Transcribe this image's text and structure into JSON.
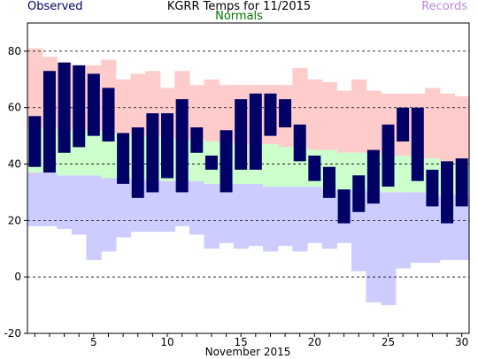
{
  "chart_data": {
    "type": "bar",
    "title": "KGRR Temps for 11/2015",
    "xlabel": "November 2015",
    "ylabel": "",
    "xlim": [
      0.5,
      30.5
    ],
    "ylim": [
      -20,
      90
    ],
    "x_ticks": [
      5,
      10,
      15,
      20,
      25,
      30
    ],
    "y_ticks": [
      -20,
      0,
      20,
      40,
      60,
      80
    ],
    "grid": "dashed horizontal at y ticks",
    "legend": {
      "placement": "top",
      "entries": [
        "Observed",
        "Normals",
        "Records"
      ]
    },
    "colors": {
      "observed": "#000066",
      "normals": "#ccffcc",
      "records_high": "#ffcccc",
      "records_low": "#ccccff",
      "normals_label": "#007700",
      "records_label": "#bb88dd"
    },
    "days": [
      1,
      2,
      3,
      4,
      5,
      6,
      7,
      8,
      9,
      10,
      11,
      12,
      13,
      14,
      15,
      16,
      17,
      18,
      19,
      20,
      21,
      22,
      23,
      24,
      25,
      26,
      27,
      28,
      29,
      30
    ],
    "observed_high": [
      57,
      73,
      76,
      75,
      72,
      67,
      51,
      53,
      58,
      58,
      63,
      53,
      43,
      52,
      63,
      65,
      65,
      63,
      54,
      43,
      39,
      31,
      36,
      45,
      54,
      60,
      60,
      38,
      41,
      42
    ],
    "observed_low": [
      39,
      37,
      44,
      46,
      50,
      48,
      33,
      28,
      30,
      35,
      30,
      44,
      38,
      30,
      38,
      38,
      50,
      53,
      41,
      34,
      28,
      19,
      23,
      26,
      32,
      48,
      34,
      25,
      19,
      25
    ],
    "normal_high": [
      53,
      53,
      52,
      52,
      52,
      51,
      51,
      50,
      50,
      49,
      49,
      49,
      48,
      48,
      47,
      47,
      47,
      46,
      46,
      45,
      45,
      44,
      44,
      44,
      43,
      43,
      42,
      42,
      41,
      41
    ],
    "normal_low": [
      37,
      37,
      36,
      36,
      36,
      35,
      35,
      35,
      34,
      34,
      34,
      34,
      33,
      33,
      33,
      33,
      32,
      32,
      32,
      32,
      31,
      31,
      31,
      30,
      30,
      30,
      30,
      29,
      29,
      29
    ],
    "record_high": [
      81,
      78,
      76,
      75,
      75,
      77,
      70,
      72,
      73,
      67,
      73,
      68,
      70,
      68,
      68,
      68,
      68,
      68,
      74,
      70,
      69,
      66,
      70,
      66,
      65,
      65,
      65,
      67,
      65,
      64
    ],
    "record_low": [
      18,
      18,
      17,
      15,
      6,
      9,
      14,
      16,
      16,
      16,
      18,
      15,
      10,
      12,
      10,
      11,
      9,
      11,
      9,
      12,
      10,
      12,
      2,
      -9,
      -10,
      3,
      5,
      5,
      6,
      6
    ]
  }
}
